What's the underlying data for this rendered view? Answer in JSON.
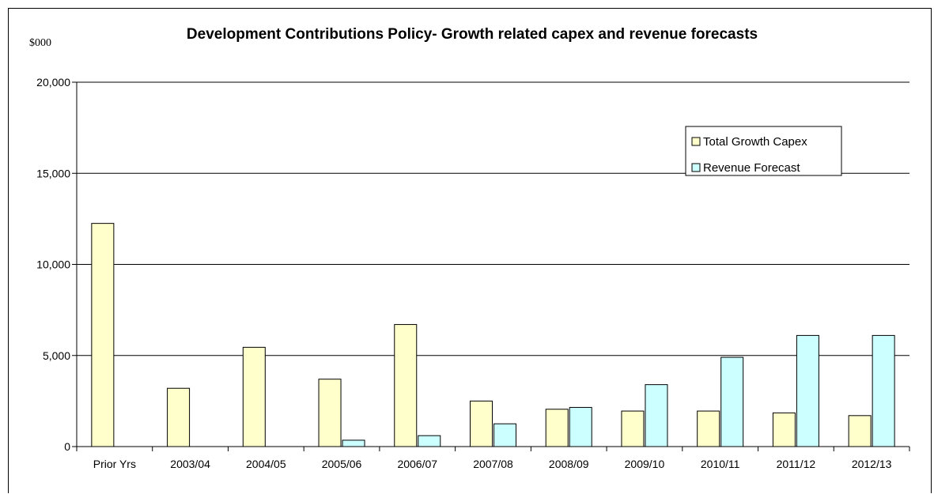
{
  "chart_data": {
    "type": "bar",
    "title": "Development Contributions Policy- Growth related capex and revenue forecasts",
    "unit_label": "$000",
    "xlabel": "",
    "ylabel": "",
    "ylim": [
      0,
      20000
    ],
    "yticks": [
      0,
      5000,
      10000,
      15000,
      20000
    ],
    "ytick_labels": [
      "0",
      "5,000",
      "10,000",
      "15,000",
      "20,000"
    ],
    "grid": "horizontal",
    "legend_position": "top-right",
    "categories": [
      "Prior Yrs",
      "2003/04",
      "2004/05",
      "2005/06",
      "2006/07",
      "2007/08",
      "2008/09",
      "2009/10",
      "2010/11",
      "2011/12",
      "2012/13"
    ],
    "series": [
      {
        "name": "Total Growth Capex",
        "color": "#ffffcc",
        "values": [
          12250,
          3200,
          5450,
          3700,
          6700,
          2500,
          2050,
          1950,
          1950,
          1850,
          1700
        ]
      },
      {
        "name": "Revenue Forecast",
        "color": "#ccffff",
        "values": [
          0,
          0,
          0,
          350,
          600,
          1250,
          2150,
          3400,
          4900,
          6100,
          6100
        ]
      }
    ]
  }
}
